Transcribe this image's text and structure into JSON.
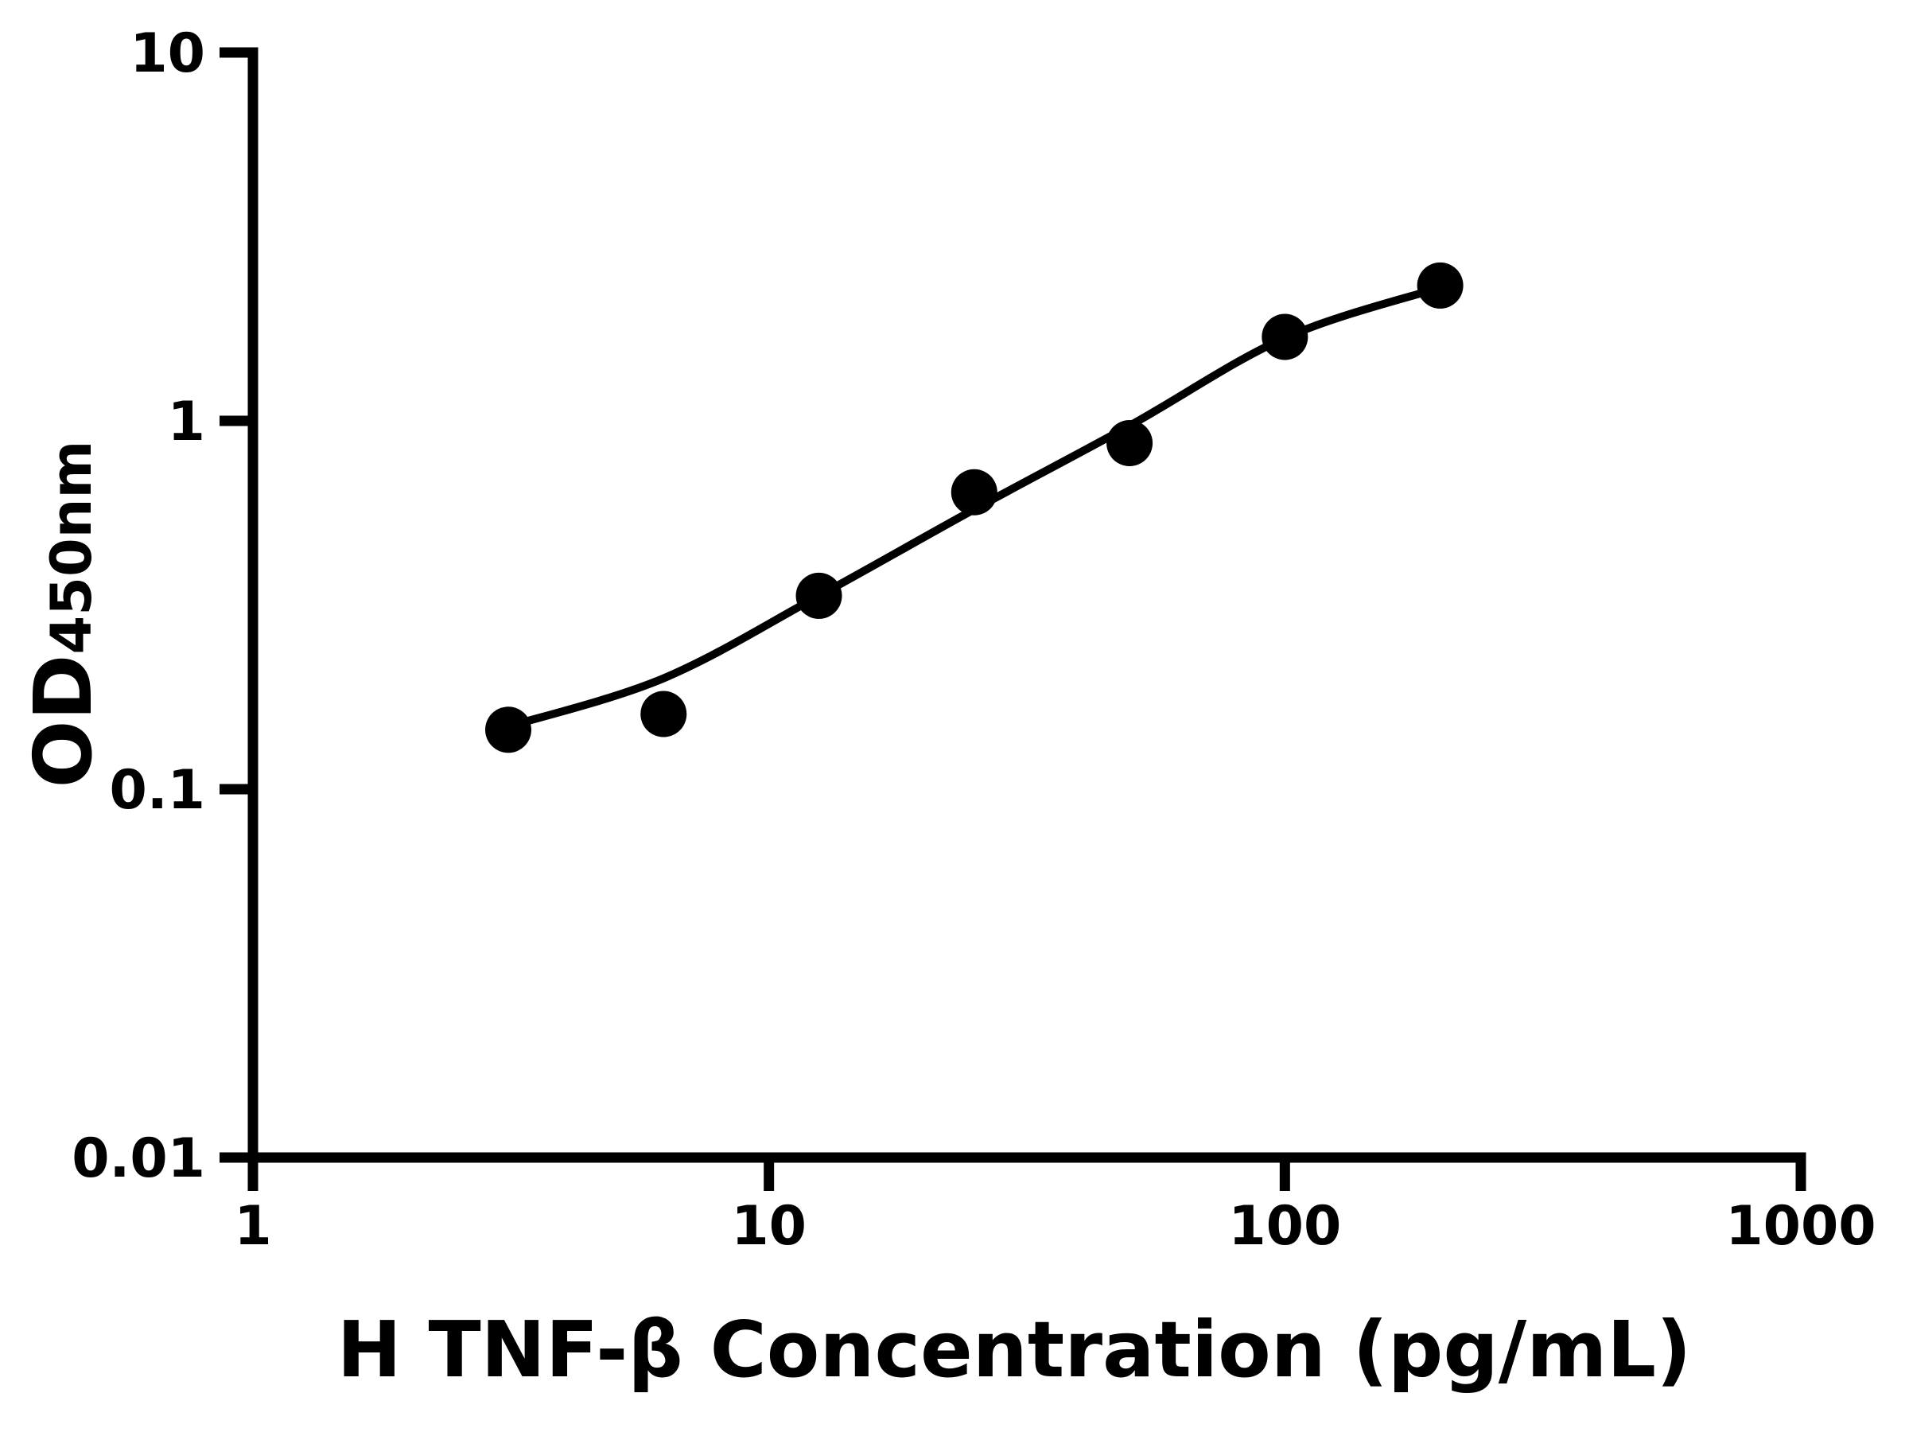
{
  "figure": {
    "background_color": "#ffffff",
    "ink_color": "#000000"
  },
  "chart_data": {
    "type": "scatter",
    "title": "",
    "xlabel": "H TNF-β Concentration (pg/mL)",
    "ylabel": "OD",
    "ylabel_subscript": "450nm",
    "x_scale": "log10",
    "y_scale": "log10",
    "xlim": [
      1,
      1000
    ],
    "ylim": [
      0.01,
      10
    ],
    "x_ticks": [
      1,
      10,
      100,
      1000
    ],
    "x_tick_labels": [
      "1",
      "10",
      "100",
      "1000"
    ],
    "y_ticks": [
      10,
      1,
      0.1,
      0.01
    ],
    "y_tick_labels": [
      "10",
      "1",
      "0.1",
      "0.01"
    ],
    "grid": false,
    "legend": null,
    "marker_color": "#000000",
    "line_color": "#000000",
    "series": [
      {
        "name": "standard-points",
        "type": "scatter",
        "marker": "filled-circle",
        "x": [
          3.125,
          6.25,
          12.5,
          25,
          50,
          100,
          200
        ],
        "y": [
          0.145,
          0.16,
          0.335,
          0.64,
          0.87,
          1.69,
          2.33
        ]
      },
      {
        "name": "fit-curve",
        "type": "line",
        "x": [
          3.125,
          6.25,
          12.5,
          25,
          50,
          100,
          200
        ],
        "y": [
          0.148,
          0.2,
          0.335,
          0.575,
          0.97,
          1.68,
          2.3
        ]
      }
    ]
  }
}
